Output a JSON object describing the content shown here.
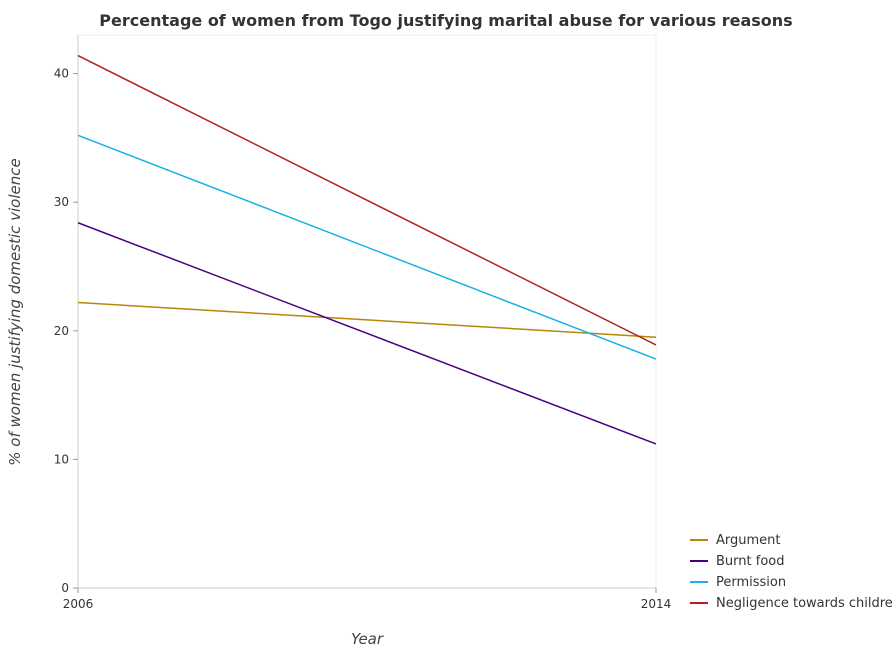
{
  "chart_data": {
    "type": "line",
    "title": "Percentage of women from Togo justifying marital abuse for various reasons",
    "xlabel": "Year",
    "ylabel": "% of women justifying domestic violence",
    "x": [
      "2006",
      "2014"
    ],
    "ylim": [
      0,
      43
    ],
    "yticks": [
      0,
      10,
      20,
      30,
      40
    ],
    "grid": false,
    "legend_position": "bottom-right",
    "series": [
      {
        "name": "Argument",
        "values": [
          22.2,
          19.5
        ],
        "color": "#b8860b"
      },
      {
        "name": "Burnt food",
        "values": [
          28.4,
          11.2
        ],
        "color": "#4b0082"
      },
      {
        "name": "Permission",
        "values": [
          35.2,
          17.8
        ],
        "color": "#1ab2e6"
      },
      {
        "name": "Negligence towards children",
        "values": [
          41.4,
          18.9
        ],
        "color": "#b22222"
      }
    ]
  }
}
